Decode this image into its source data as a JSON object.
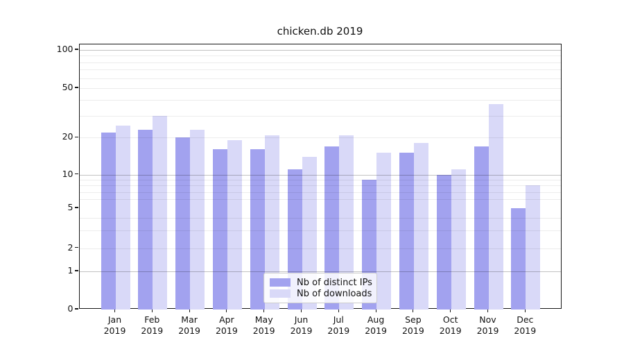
{
  "chart_data": {
    "type": "bar",
    "title": "chicken.db 2019",
    "categories": [
      "Jan",
      "Feb",
      "Mar",
      "Apr",
      "May",
      "Jun",
      "Jul",
      "Aug",
      "Sep",
      "Oct",
      "Nov",
      "Dec"
    ],
    "x_year": "2019",
    "series": [
      {
        "name": "Nb of distinct IPs",
        "color": "#a2a2ef",
        "values": [
          22,
          23,
          20,
          16,
          16,
          11,
          17,
          9,
          15,
          10,
          17,
          5
        ]
      },
      {
        "name": "Nb of downloads",
        "color": "#d9d9f8",
        "values": [
          25,
          30,
          23,
          19,
          21,
          14,
          21,
          15,
          18,
          11,
          37,
          8
        ]
      }
    ],
    "yscale": "symlog",
    "ylim": [
      0,
      110
    ],
    "y_labeled_ticks": [
      0,
      1,
      2,
      5,
      10,
      20,
      50,
      100
    ],
    "y_major_gridlines": [
      1,
      10,
      100
    ],
    "y_minor_gridlines": [
      2,
      3,
      4,
      6,
      7,
      8,
      9,
      20,
      30,
      40,
      50,
      60,
      70,
      80,
      90
    ],
    "grid": true,
    "legend": {
      "position": "lower center",
      "entries": [
        "Nb of distinct IPs",
        "Nb of downloads"
      ]
    }
  }
}
